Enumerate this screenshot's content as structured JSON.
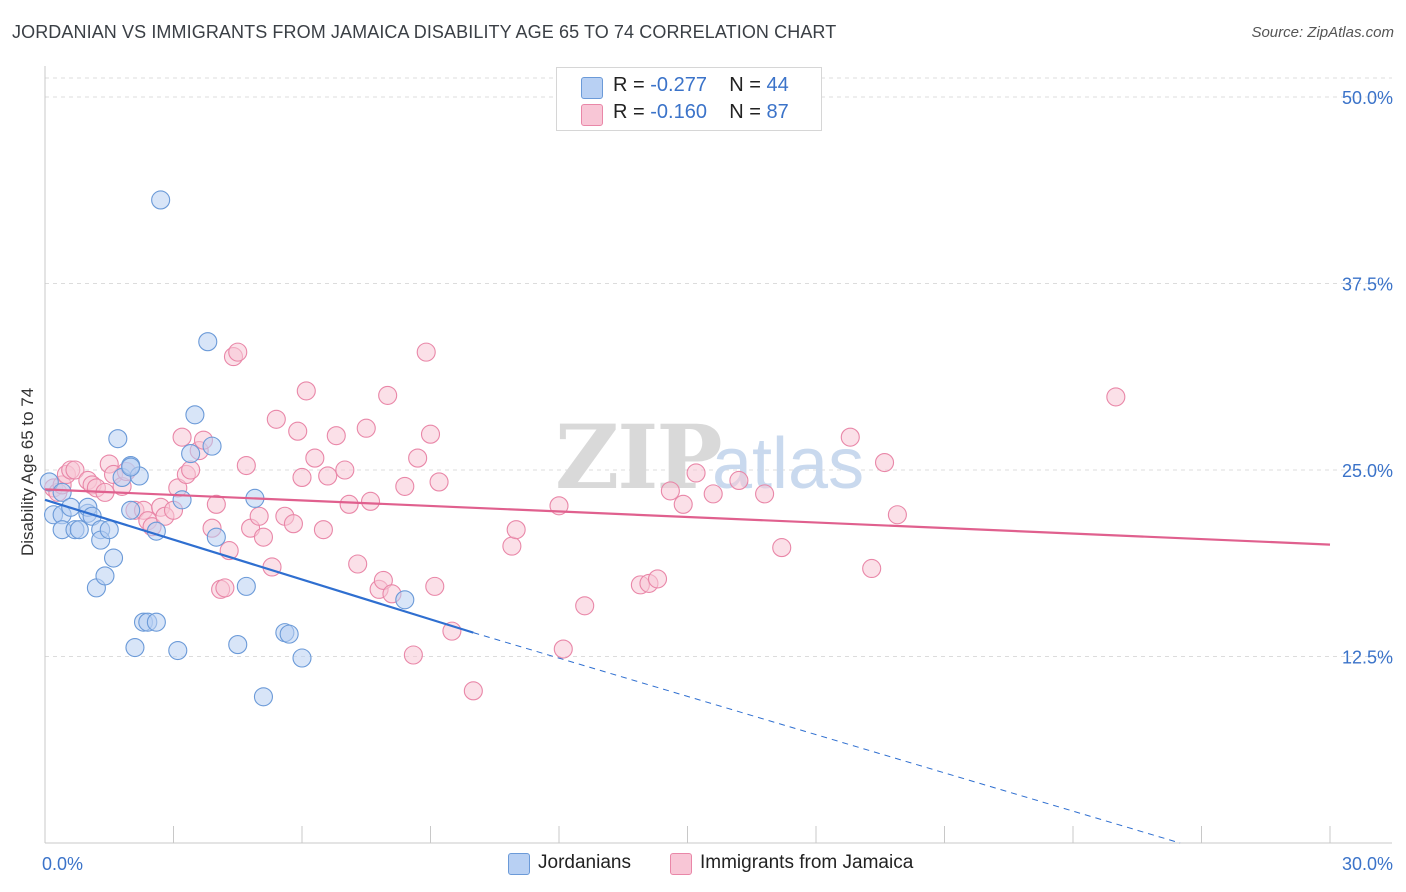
{
  "title": "JORDANIAN VS IMMIGRANTS FROM JAMAICA DISABILITY AGE 65 TO 74 CORRELATION CHART",
  "source": "Source: ZipAtlas.com",
  "watermark": "ZIPatlas",
  "legend": {
    "rows": [
      {
        "r_label": "R = ",
        "r_value": "-0.277",
        "n_label": "N = ",
        "n_value": "44"
      },
      {
        "r_label": "R = ",
        "r_value": "-0.160",
        "n_label": "N = ",
        "n_value": "87"
      }
    ]
  },
  "colors": {
    "blue_fill": "#b8d0f3",
    "blue_stroke": "#6b9ad8",
    "blue_line": "#2f6fd0",
    "pink_fill": "#f8c6d6",
    "pink_stroke": "#e987a8",
    "pink_line": "#e0608e",
    "axis_text": "#3b73c9",
    "grid": "#dcdcdc"
  },
  "chart_data": {
    "type": "scatter",
    "title": "JORDANIAN VS IMMIGRANTS FROM JAMAICA DISABILITY AGE 65 TO 74 CORRELATION CHART",
    "xlabel": "",
    "ylabel": "Disability Age 65 to 74",
    "xlim": [
      0,
      30
    ],
    "ylim": [
      0,
      50
    ],
    "x_tick_labels": [
      "0.0%",
      "30.0%"
    ],
    "y_ticks": [
      12.5,
      25.0,
      37.5,
      50.0
    ],
    "y_tick_labels": [
      "12.5%",
      "25.0%",
      "37.5%",
      "50.0%"
    ],
    "grid": true,
    "legend_position": "top-center",
    "series": [
      {
        "name": "Jordanians",
        "color": "#6b9ad8",
        "trend": {
          "x": [
            0,
            10
          ],
          "y": [
            23.0,
            14.1
          ],
          "dashed_extension_to": [
            26.5,
            0
          ]
        },
        "points": [
          [
            0.1,
            24.2
          ],
          [
            0.2,
            22.0
          ],
          [
            0.4,
            23.5
          ],
          [
            0.4,
            22.0
          ],
          [
            0.4,
            21.0
          ],
          [
            0.6,
            22.5
          ],
          [
            0.7,
            21.0
          ],
          [
            0.8,
            21.0
          ],
          [
            1.0,
            22.1
          ],
          [
            1.0,
            22.5
          ],
          [
            1.1,
            21.9
          ],
          [
            1.2,
            17.1
          ],
          [
            1.3,
            21.0
          ],
          [
            1.3,
            20.3
          ],
          [
            1.4,
            17.9
          ],
          [
            1.5,
            21.0
          ],
          [
            1.6,
            19.1
          ],
          [
            1.7,
            27.1
          ],
          [
            1.8,
            24.5
          ],
          [
            2.0,
            25.3
          ],
          [
            2.0,
            22.3
          ],
          [
            2.1,
            13.1
          ],
          [
            2.2,
            24.6
          ],
          [
            2.3,
            14.8
          ],
          [
            2.4,
            14.8
          ],
          [
            2.6,
            14.8
          ],
          [
            2.6,
            20.9
          ],
          [
            2.7,
            43.1
          ],
          [
            3.1,
            12.9
          ],
          [
            3.2,
            23.0
          ],
          [
            3.4,
            26.1
          ],
          [
            3.5,
            28.7
          ],
          [
            3.8,
            33.6
          ],
          [
            3.9,
            26.6
          ],
          [
            4.0,
            20.5
          ],
          [
            4.5,
            13.3
          ],
          [
            4.7,
            17.2
          ],
          [
            4.9,
            23.1
          ],
          [
            5.1,
            9.8
          ],
          [
            5.6,
            14.1
          ],
          [
            5.7,
            14.0
          ],
          [
            6.0,
            12.4
          ],
          [
            8.4,
            16.3
          ],
          [
            2.0,
            25.2
          ]
        ]
      },
      {
        "name": "Immigrants from Jamaica",
        "color": "#e987a8",
        "trend": {
          "x": [
            0,
            30
          ],
          "y": [
            23.7,
            20.0
          ]
        },
        "points": [
          [
            0.2,
            23.8
          ],
          [
            0.3,
            23.5
          ],
          [
            0.4,
            24.0
          ],
          [
            0.5,
            24.7
          ],
          [
            0.6,
            25.0
          ],
          [
            0.7,
            25.0
          ],
          [
            1.0,
            24.3
          ],
          [
            1.1,
            24.0
          ],
          [
            1.2,
            23.8
          ],
          [
            1.4,
            23.5
          ],
          [
            1.5,
            25.4
          ],
          [
            1.6,
            24.7
          ],
          [
            1.8,
            23.9
          ],
          [
            1.9,
            24.9
          ],
          [
            2.1,
            22.3
          ],
          [
            2.3,
            22.3
          ],
          [
            2.4,
            21.6
          ],
          [
            2.5,
            21.2
          ],
          [
            2.7,
            22.5
          ],
          [
            2.8,
            21.9
          ],
          [
            3.0,
            22.3
          ],
          [
            3.1,
            23.8
          ],
          [
            3.2,
            27.2
          ],
          [
            3.3,
            24.7
          ],
          [
            3.4,
            25.0
          ],
          [
            3.6,
            26.3
          ],
          [
            3.7,
            27.0
          ],
          [
            3.9,
            21.1
          ],
          [
            4.0,
            22.7
          ],
          [
            4.1,
            17.0
          ],
          [
            4.3,
            19.6
          ],
          [
            4.4,
            32.6
          ],
          [
            4.5,
            32.9
          ],
          [
            4.7,
            25.3
          ],
          [
            4.8,
            21.1
          ],
          [
            5.0,
            21.9
          ],
          [
            5.1,
            20.5
          ],
          [
            5.3,
            18.5
          ],
          [
            5.4,
            28.4
          ],
          [
            5.6,
            21.9
          ],
          [
            5.8,
            21.4
          ],
          [
            5.9,
            27.6
          ],
          [
            6.0,
            24.5
          ],
          [
            6.1,
            30.3
          ],
          [
            6.3,
            25.8
          ],
          [
            6.5,
            21.0
          ],
          [
            6.6,
            24.6
          ],
          [
            6.8,
            27.3
          ],
          [
            7.0,
            25.0
          ],
          [
            7.1,
            22.7
          ],
          [
            7.3,
            18.7
          ],
          [
            7.5,
            27.8
          ],
          [
            7.6,
            22.9
          ],
          [
            7.8,
            17.0
          ],
          [
            7.9,
            17.6
          ],
          [
            8.0,
            30.0
          ],
          [
            8.1,
            16.7
          ],
          [
            8.4,
            23.9
          ],
          [
            8.6,
            12.6
          ],
          [
            8.7,
            25.8
          ],
          [
            8.9,
            32.9
          ],
          [
            9.0,
            27.4
          ],
          [
            9.1,
            17.2
          ],
          [
            9.2,
            24.2
          ],
          [
            9.5,
            14.2
          ],
          [
            10.0,
            10.2
          ],
          [
            10.9,
            19.9
          ],
          [
            11.0,
            21.0
          ],
          [
            12.0,
            22.6
          ],
          [
            12.1,
            13.0
          ],
          [
            12.6,
            15.9
          ],
          [
            13.9,
            17.3
          ],
          [
            14.1,
            17.4
          ],
          [
            14.3,
            17.7
          ],
          [
            14.6,
            23.6
          ],
          [
            14.9,
            22.7
          ],
          [
            15.2,
            24.8
          ],
          [
            15.6,
            23.4
          ],
          [
            16.2,
            24.3
          ],
          [
            16.8,
            23.4
          ],
          [
            17.2,
            19.8
          ],
          [
            18.8,
            27.2
          ],
          [
            19.3,
            18.4
          ],
          [
            19.6,
            25.5
          ],
          [
            19.9,
            22.0
          ],
          [
            25.0,
            29.9
          ],
          [
            4.2,
            17.1
          ]
        ]
      }
    ]
  },
  "bottom_legend": [
    "Jordanians",
    "Immigrants from Jamaica"
  ]
}
